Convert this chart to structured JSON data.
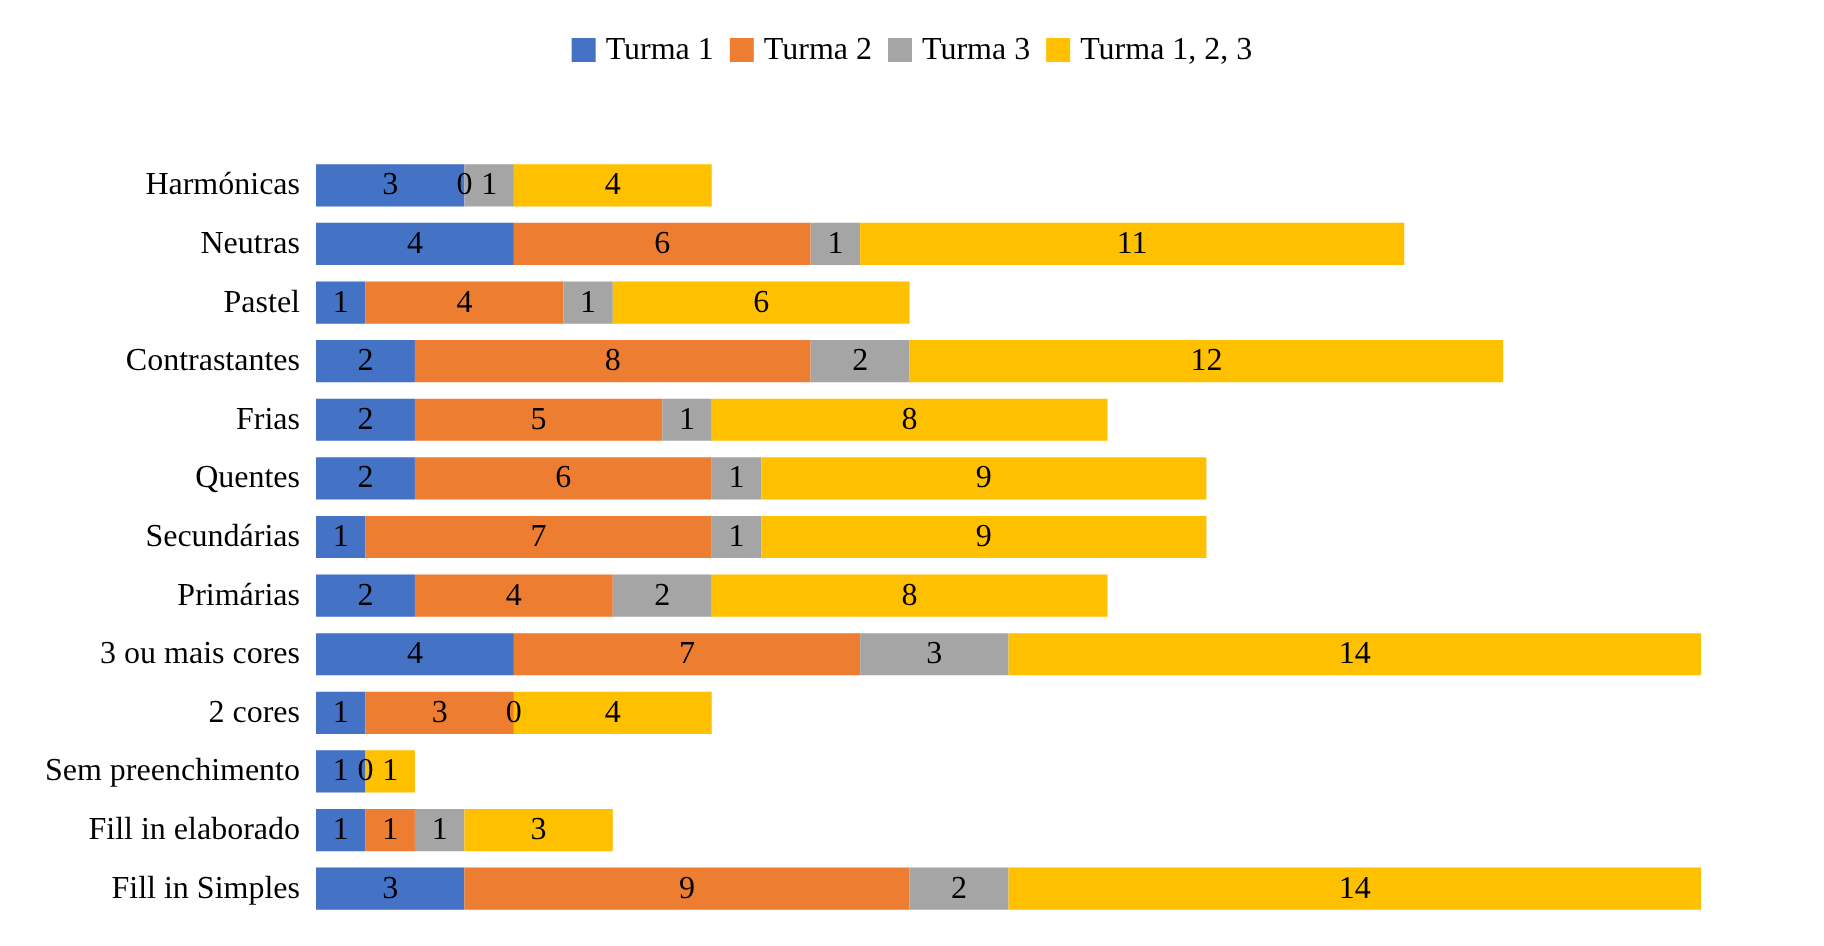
{
  "chart_data": {
    "type": "bar",
    "orientation": "horizontal",
    "stacked": true,
    "legend": "top",
    "categories": [
      "Harmónicas",
      "Neutras",
      "Pastel",
      "Contrastantes",
      "Frias",
      "Quentes",
      "Secundárias",
      "Primárias",
      "3 ou mais cores",
      "2 cores",
      "Sem preenchimento",
      "Fill in elaborado",
      "Fill in Simples"
    ],
    "series": [
      {
        "name": "Turma 1",
        "color": "#4472c4",
        "values": [
          3,
          4,
          1,
          2,
          2,
          2,
          1,
          2,
          4,
          1,
          1,
          1,
          3
        ],
        "value_labels": [
          "3",
          "4",
          "1",
          "2",
          "2",
          "2",
          "1",
          "2",
          "4",
          "1",
          "1",
          "1",
          "3"
        ]
      },
      {
        "name": "Turma 2",
        "color": "#ed7d31",
        "values": [
          0,
          6,
          4,
          8,
          5,
          6,
          7,
          4,
          7,
          3,
          0,
          1,
          9
        ],
        "value_labels": [
          null,
          "6",
          "4",
          "8",
          "5",
          "6",
          "7",
          "4",
          "7",
          "3",
          null,
          "1",
          "9"
        ]
      },
      {
        "name": "Turma 3",
        "color": "#a5a5a5",
        "values": [
          1,
          1,
          1,
          2,
          1,
          1,
          1,
          2,
          3,
          0,
          0,
          1,
          2
        ],
        "value_labels": [
          "1",
          "1",
          "1",
          "2",
          "1",
          "1",
          "1",
          "2",
          "3",
          null,
          null,
          "1",
          "2"
        ]
      },
      {
        "name": "Turma 1, 2, 3",
        "color": "#ffc000",
        "values": [
          4,
          11,
          6,
          12,
          8,
          9,
          9,
          8,
          14,
          4,
          1,
          3,
          14
        ],
        "value_labels": [
          "4",
          "11",
          "6",
          "12",
          "8",
          "9",
          "9",
          "8",
          "14",
          "4",
          "1",
          "3",
          "14"
        ]
      }
    ],
    "annotations": [
      {
        "text": "0",
        "x": 3,
        "y": "Harmónicas"
      },
      {
        "text": "0",
        "x": 4,
        "y": "2 cores"
      },
      {
        "text": "0",
        "x": 1,
        "y": "Sem preenchimento"
      }
    ]
  }
}
